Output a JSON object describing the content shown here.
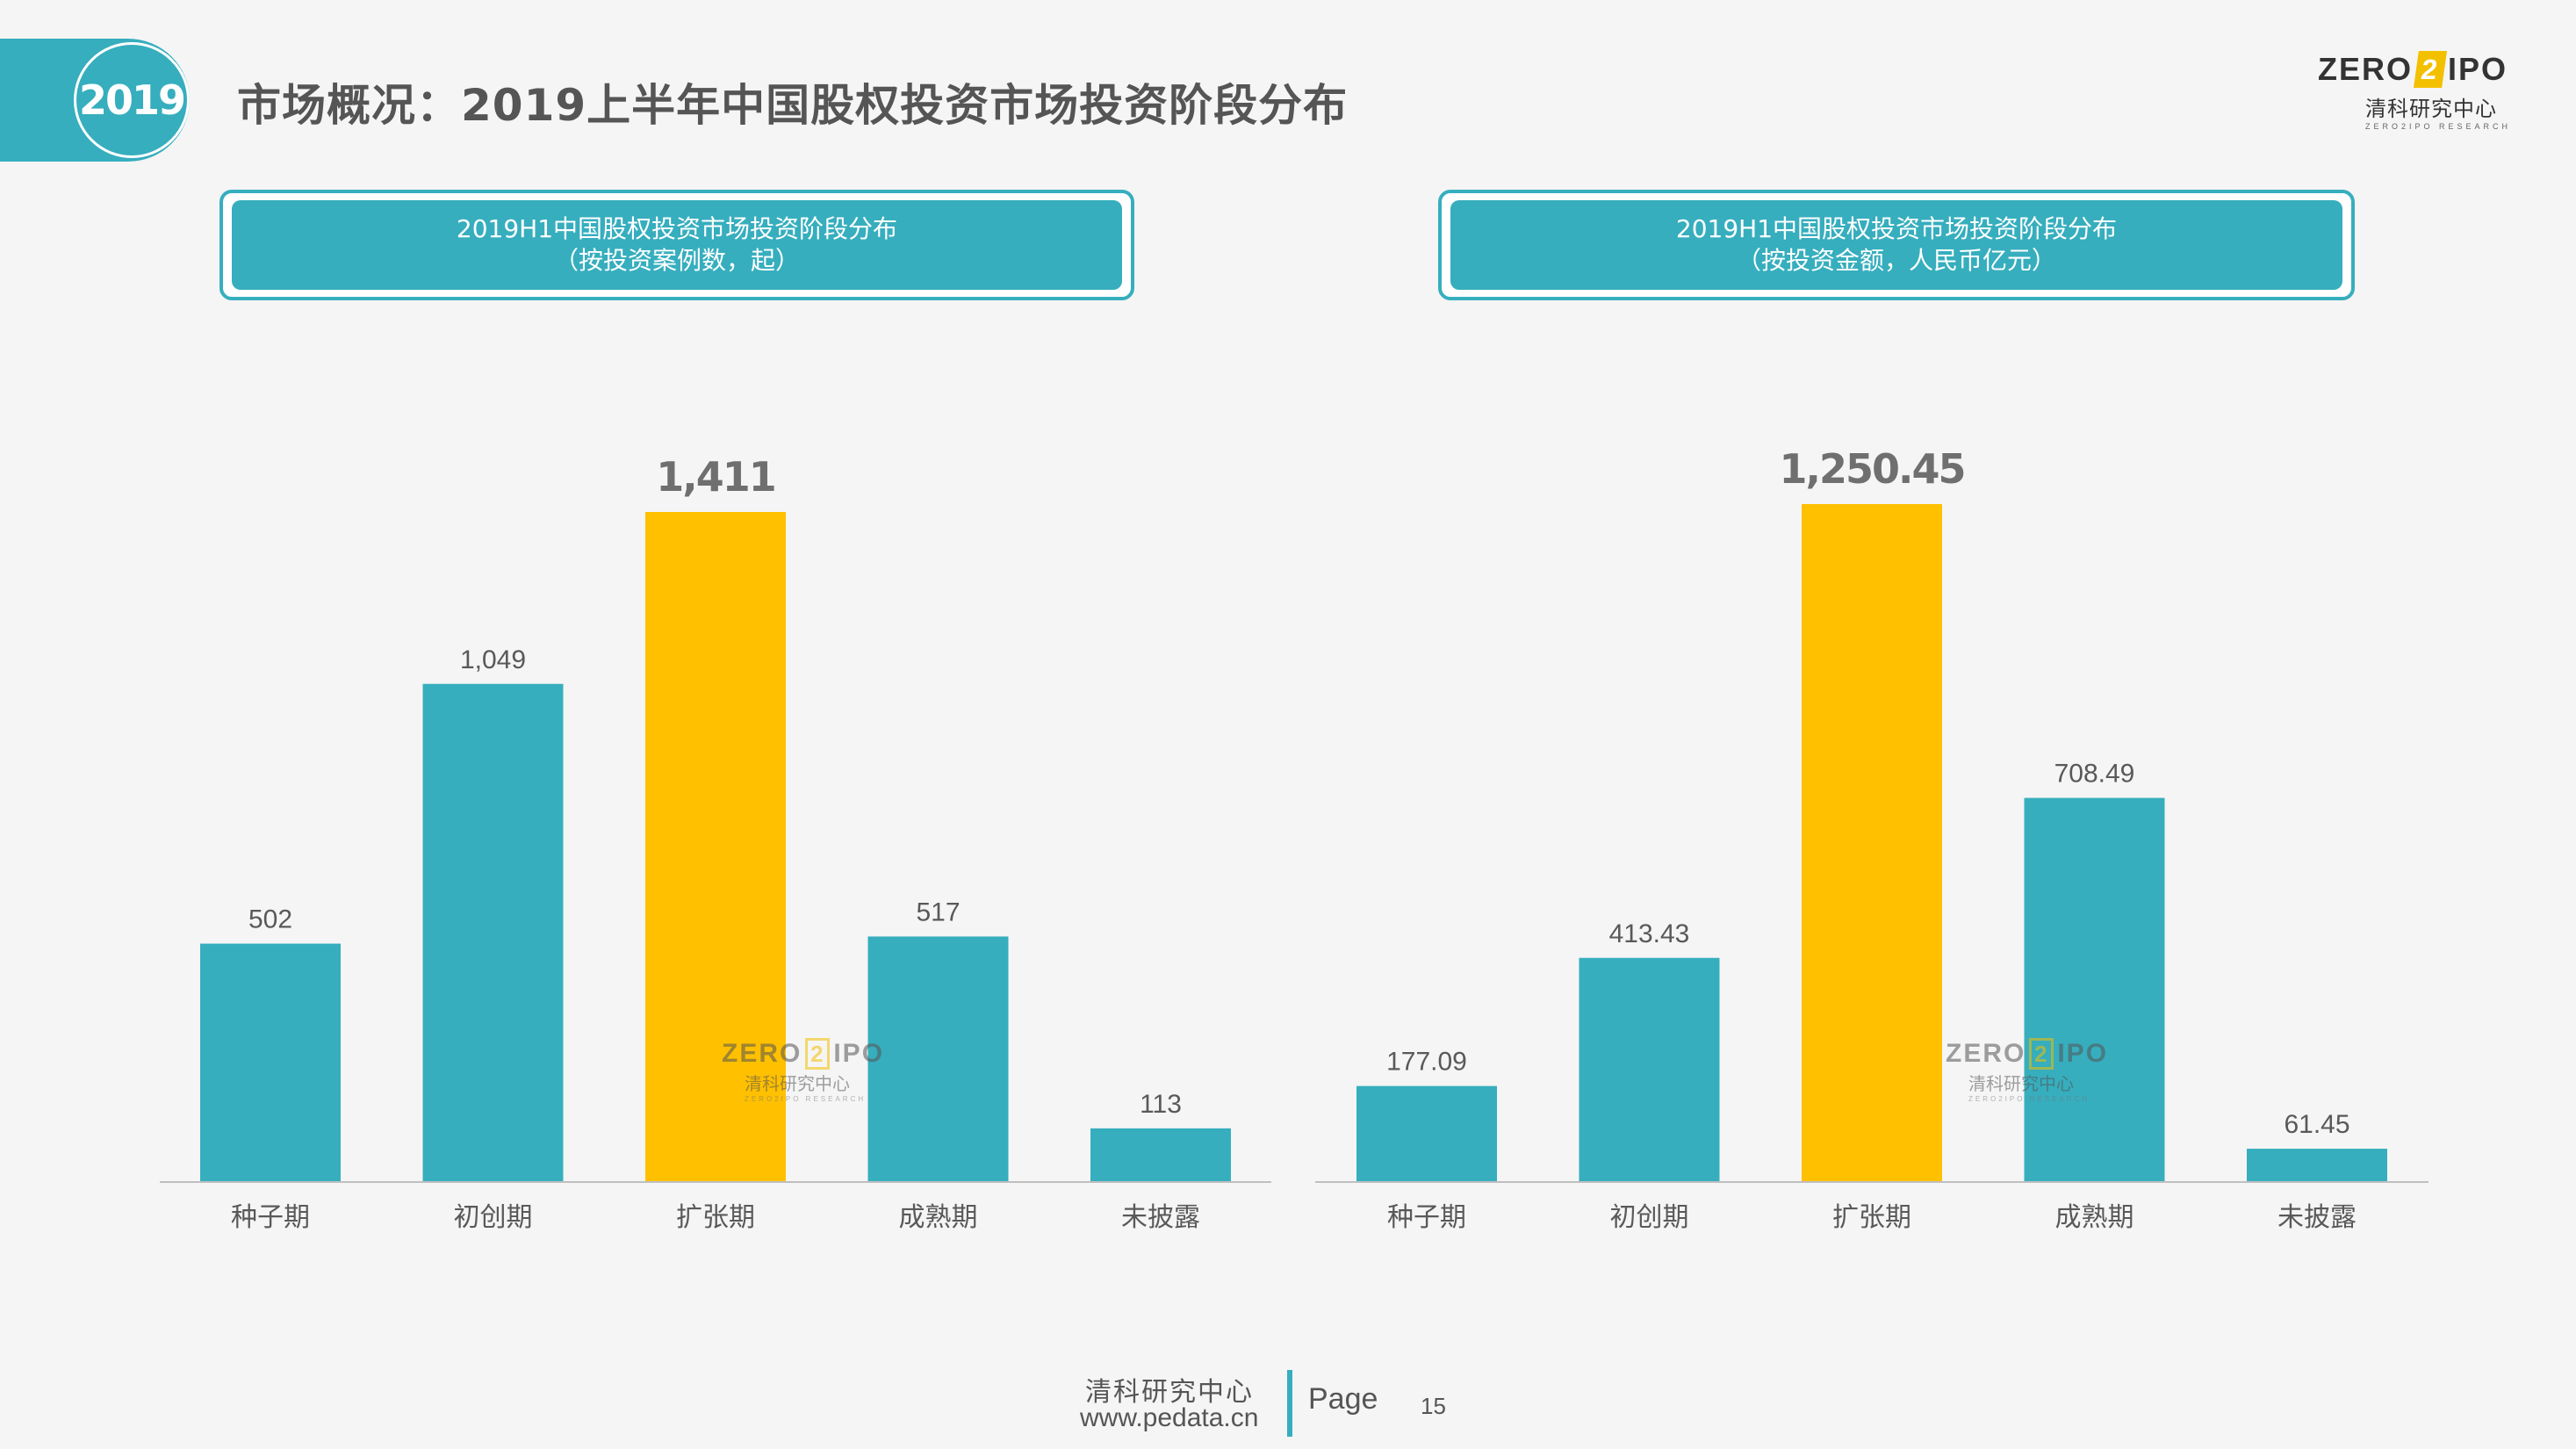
{
  "header": {
    "year": "2019",
    "title": "市场概况：2019上半年中国股权投资市场投资阶段分布"
  },
  "logo": {
    "left": "ZERO",
    "mid": "2",
    "right": "IPO",
    "org": "清科研究中心",
    "sub": "ZERO2IPO RESEARCH"
  },
  "colors": {
    "accent": "#36aebe",
    "highlight": "#ffc000"
  },
  "panels": [
    {
      "line1": "2019H1中国股权投资市场投资阶段分布",
      "line2": "（按投资案例数，起）"
    },
    {
      "line1": "2019H1中国股权投资市场投资阶段分布",
      "line2": "（按投资金额，人民币亿元）"
    }
  ],
  "chart_data": [
    {
      "type": "bar",
      "title": "2019H1中国股权投资市场投资阶段分布（按投资案例数，起）",
      "categories": [
        "种子期",
        "初创期",
        "扩张期",
        "成熟期",
        "未披露"
      ],
      "values": [
        502,
        1049,
        1411,
        517,
        113
      ],
      "value_labels": [
        "502",
        "1,049",
        "1,411",
        "517",
        "113"
      ],
      "highlight_index": 2,
      "ylim": [
        0,
        1411
      ],
      "grid": false
    },
    {
      "type": "bar",
      "title": "2019H1中国股权投资市场投资阶段分布（按投资金额，人民币亿元）",
      "categories": [
        "种子期",
        "初创期",
        "扩张期",
        "成熟期",
        "未披露"
      ],
      "values": [
        177.09,
        413.43,
        1250.45,
        708.49,
        61.45
      ],
      "value_labels": [
        "177.09",
        "413.43",
        "1,250.45",
        "708.49",
        "61.45"
      ],
      "highlight_index": 2,
      "ylim": [
        0,
        1250.45
      ],
      "grid": false
    }
  ],
  "watermark": {
    "left": "ZERO",
    "mid": "2",
    "right": "IPO",
    "org": "清科研究中心",
    "sub": "ZERO2IPO RESEARCH"
  },
  "footer": {
    "org": "清科研究中心",
    "url": "www.pedata.cn",
    "page_label": "Page",
    "page_number": "15"
  }
}
